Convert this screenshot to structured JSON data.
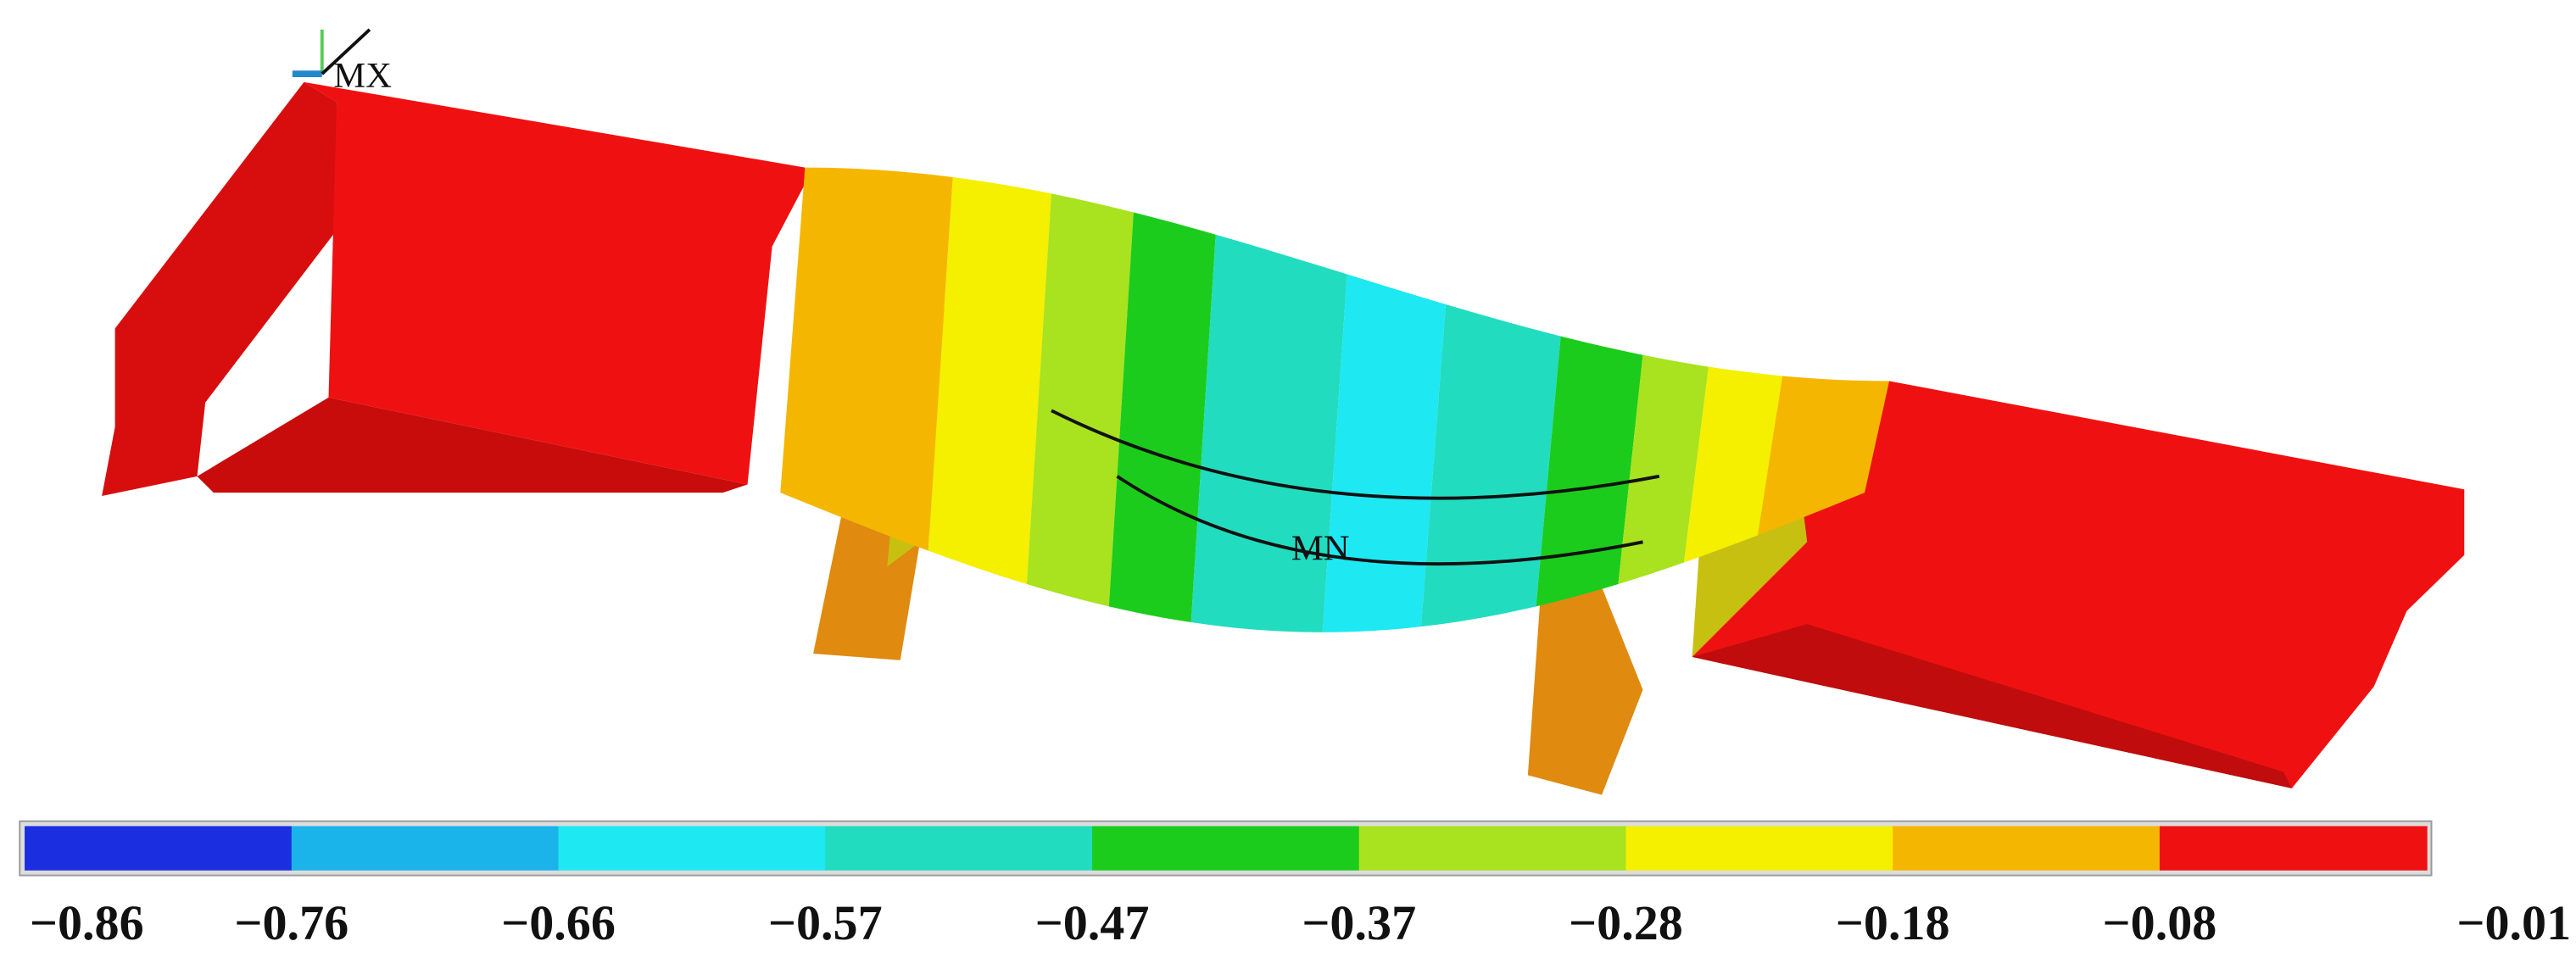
{
  "markers": {
    "max": "MX",
    "min": "MN"
  },
  "legend": {
    "colors": [
      "#1b2fe0",
      "#1ab3ea",
      "#1ee8f2",
      "#22dcc0",
      "#1ccc1c",
      "#a9e21e",
      "#f5ef00",
      "#f5b600",
      "#ef1111"
    ],
    "labels": [
      "−0.86",
      "−0.76",
      "−0.66",
      "−0.57",
      "−0.47",
      "−0.37",
      "−0.28",
      "−0.18",
      "−0.08",
      "−0.01"
    ]
  }
}
